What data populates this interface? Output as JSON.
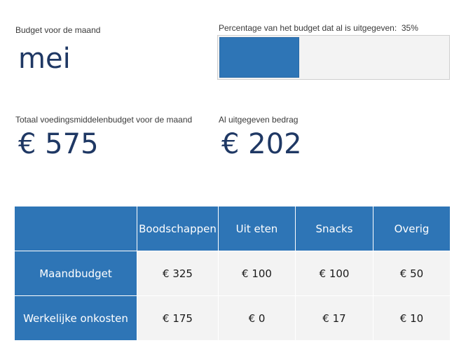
{
  "month": {
    "label": "Budget voor de maand",
    "value": "mei"
  },
  "percentage": {
    "label": "Percentage van het budget dat al is uitgegeven:",
    "value_text": "35%",
    "fraction": 0.35,
    "fill_color": "#2e75b6"
  },
  "total_budget": {
    "label": "Totaal voedingsmiddelenbudget voor de maand",
    "value": "€ 575"
  },
  "spent": {
    "label": "Al uitgegeven bedrag",
    "value": "€ 202"
  },
  "table": {
    "headers": [
      "",
      "Boodschappen",
      "Uit eten",
      "Snacks",
      "Overig"
    ],
    "rows": [
      {
        "label": "Maandbudget",
        "values": [
          "€ 325",
          "€ 100",
          "€ 100",
          "€ 50"
        ]
      },
      {
        "label": "Werkelijke onkosten",
        "values": [
          "€ 175",
          "€ 0",
          "€ 17",
          "€ 10"
        ]
      }
    ],
    "header_color": "#2e75b6"
  }
}
